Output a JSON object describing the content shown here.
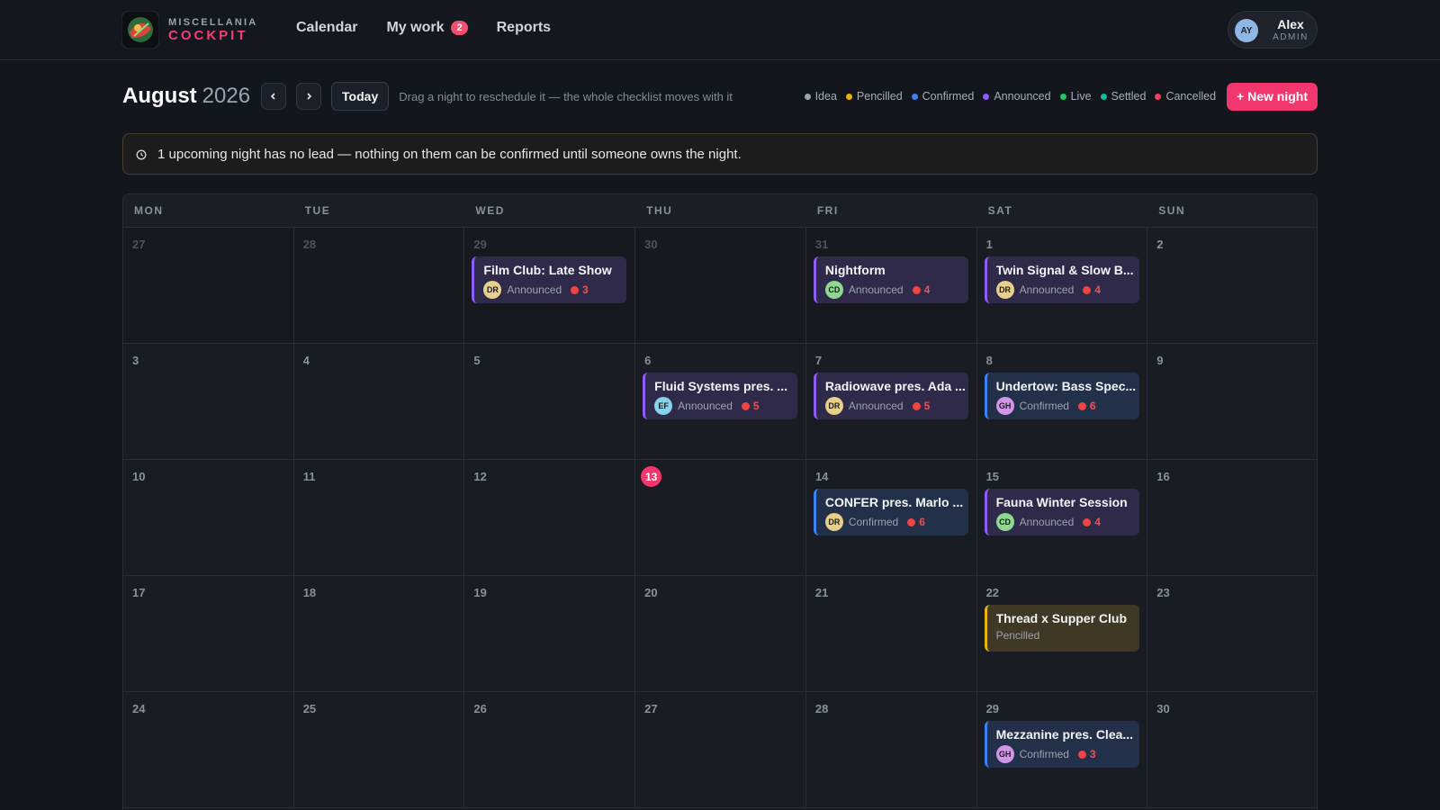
{
  "header": {
    "brand_top": "MISCELLANIA",
    "brand_bottom": "COCKPIT",
    "nav": [
      {
        "label": "Calendar"
      },
      {
        "label": "My work",
        "badge": 2
      },
      {
        "label": "Reports"
      }
    ],
    "user": {
      "initials": "AY",
      "name": "Alex",
      "role": "ADMIN"
    }
  },
  "toolbar": {
    "month": "August",
    "year": 2026,
    "today": "Today",
    "hint": "Drag a night to reschedule it — the whole checklist moves with it",
    "legend": [
      {
        "label": "Idea",
        "color": "#9ca3af"
      },
      {
        "label": "Pencilled",
        "color": "#eab308"
      },
      {
        "label": "Confirmed",
        "color": "#3b82f6"
      },
      {
        "label": "Announced",
        "color": "#8b5cf6"
      },
      {
        "label": "Live",
        "color": "#22c55e"
      },
      {
        "label": "Settled",
        "color": "#14b8a6"
      },
      {
        "label": "Cancelled",
        "color": "#f43f5e"
      }
    ],
    "new_button": "+ New night"
  },
  "alert": "1 upcoming night has no lead — nothing on them can be confirmed until someone owns the night.",
  "weekdays": [
    "MON",
    "TUE",
    "WED",
    "THU",
    "FRI",
    "SAT",
    "SUN"
  ],
  "weeks": [
    [
      {
        "day": 27,
        "muted": true
      },
      {
        "day": 28,
        "muted": true
      },
      {
        "day": 29,
        "muted": true,
        "events": [
          {
            "title": "Film Club: Late Show",
            "lead": {
              "initials": "DR",
              "color": "#e8d08a"
            },
            "status": "Announced",
            "count": 3
          }
        ]
      },
      {
        "day": 30,
        "muted": true
      },
      {
        "day": 31,
        "muted": true,
        "events": [
          {
            "title": "Nightform",
            "lead": {
              "initials": "CD",
              "color": "#8fd98f"
            },
            "status": "Announced",
            "count": 4
          }
        ]
      },
      {
        "day": 1,
        "events": [
          {
            "title": "Twin Signal & Slow B...",
            "lead": {
              "initials": "DR",
              "color": "#e8d08a"
            },
            "status": "Announced",
            "count": 4
          }
        ]
      },
      {
        "day": 2
      }
    ],
    [
      {
        "day": 3
      },
      {
        "day": 4
      },
      {
        "day": 5
      },
      {
        "day": 6,
        "events": [
          {
            "title": "Fluid Systems pres. ...",
            "lead": {
              "initials": "EF",
              "color": "#86d4e8"
            },
            "status": "Announced",
            "count": 5
          }
        ]
      },
      {
        "day": 7,
        "events": [
          {
            "title": "Radiowave pres. Ada ...",
            "lead": {
              "initials": "DR",
              "color": "#e8d08a"
            },
            "status": "Announced",
            "count": 5
          }
        ]
      },
      {
        "day": 8,
        "events": [
          {
            "title": "Undertow: Bass Spec...",
            "lead": {
              "initials": "GH",
              "color": "#d395e8"
            },
            "status": "Confirmed",
            "count": 6
          }
        ]
      },
      {
        "day": 9
      }
    ],
    [
      {
        "day": 10
      },
      {
        "day": 11
      },
      {
        "day": 12
      },
      {
        "day": 13,
        "today": true
      },
      {
        "day": 14,
        "events": [
          {
            "title": "CONFER pres. Marlo ...",
            "lead": {
              "initials": "DR",
              "color": "#e8d08a"
            },
            "status": "Confirmed",
            "count": 6
          }
        ]
      },
      {
        "day": 15,
        "events": [
          {
            "title": "Fauna Winter Session",
            "lead": {
              "initials": "CD",
              "color": "#8fd98f"
            },
            "status": "Announced",
            "count": 4
          }
        ]
      },
      {
        "day": 16
      }
    ],
    [
      {
        "day": 17
      },
      {
        "day": 18
      },
      {
        "day": 19
      },
      {
        "day": 20
      },
      {
        "day": 21
      },
      {
        "day": 22,
        "events": [
          {
            "title": "Thread x Supper Club",
            "status": "Pencilled"
          }
        ]
      },
      {
        "day": 23
      }
    ],
    [
      {
        "day": 24
      },
      {
        "day": 25
      },
      {
        "day": 26
      },
      {
        "day": 27
      },
      {
        "day": 28
      },
      {
        "day": 29,
        "events": [
          {
            "title": "Mezzanine pres. Clea...",
            "lead": {
              "initials": "GH",
              "color": "#d395e8"
            },
            "status": "Confirmed",
            "count": 3
          }
        ]
      },
      {
        "day": 30
      }
    ]
  ]
}
